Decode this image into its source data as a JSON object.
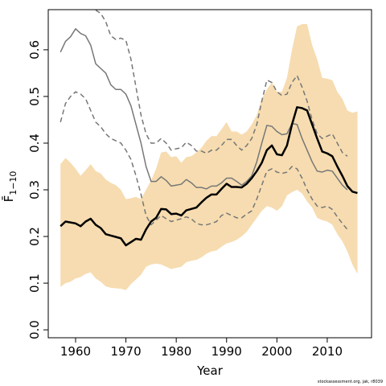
{
  "chart_data": {
    "type": "line",
    "xlabel": "Year",
    "ylabel": "F̄",
    "ylabel_sub": "1−10",
    "note": "stockassessment.org, jak, r8039",
    "xlim": [
      1954.57,
      2018.8
    ],
    "ylim": [
      -0.017,
      0.686
    ],
    "xticks": [
      1960,
      1970,
      1980,
      1990,
      2000,
      2010
    ],
    "yticks": [
      {
        "value": 0,
        "label": "0.0"
      },
      0.1,
      0.2,
      0.3,
      0.4,
      0.5,
      0.6
    ],
    "x": [
      1957,
      1958,
      1959,
      1960,
      1961,
      1962,
      1963,
      1964,
      1965,
      1966,
      1967,
      1968,
      1969,
      1970,
      1971,
      1972,
      1973,
      1974,
      1975,
      1976,
      1977,
      1978,
      1979,
      1980,
      1981,
      1982,
      1983,
      1984,
      1985,
      1986,
      1987,
      1988,
      1989,
      1990,
      1991,
      1992,
      1993,
      1994,
      1995,
      1996,
      1997,
      1998,
      1999,
      2000,
      2001,
      2002,
      2003,
      2004,
      2005,
      2006,
      2007,
      2008,
      2009,
      2010,
      2011,
      2012,
      2013,
      2014,
      2015,
      2016
    ],
    "band": {
      "color": "#f6dcb0",
      "upper": [
        0.355,
        0.368,
        0.358,
        0.345,
        0.33,
        0.342,
        0.355,
        0.34,
        0.335,
        0.322,
        0.315,
        0.31,
        0.3,
        0.28,
        0.282,
        0.285,
        0.28,
        0.3,
        0.32,
        0.345,
        0.38,
        0.382,
        0.37,
        0.372,
        0.358,
        0.37,
        0.372,
        0.38,
        0.39,
        0.405,
        0.415,
        0.415,
        0.43,
        0.445,
        0.425,
        0.425,
        0.418,
        0.425,
        0.44,
        0.46,
        0.495,
        0.515,
        0.53,
        0.51,
        0.51,
        0.54,
        0.6,
        0.65,
        0.655,
        0.655,
        0.61,
        0.58,
        0.54,
        0.538,
        0.535,
        0.51,
        0.495,
        0.47,
        0.465,
        0.468
      ],
      "lower": [
        0.092,
        0.1,
        0.103,
        0.11,
        0.113,
        0.12,
        0.123,
        0.11,
        0.103,
        0.093,
        0.09,
        0.089,
        0.088,
        0.085,
        0.098,
        0.108,
        0.118,
        0.135,
        0.14,
        0.142,
        0.14,
        0.135,
        0.13,
        0.133,
        0.135,
        0.145,
        0.148,
        0.15,
        0.155,
        0.163,
        0.168,
        0.17,
        0.178,
        0.185,
        0.188,
        0.193,
        0.2,
        0.21,
        0.225,
        0.24,
        0.255,
        0.265,
        0.262,
        0.255,
        0.265,
        0.288,
        0.295,
        0.3,
        0.292,
        0.275,
        0.262,
        0.24,
        0.235,
        0.232,
        0.225,
        0.205,
        0.19,
        0.168,
        0.14,
        0.12
      ]
    },
    "series": [
      {
        "color": "#777777",
        "style": "solid",
        "width": 1.5,
        "values": [
          0.595,
          0.618,
          0.628,
          0.645,
          0.635,
          0.63,
          0.61,
          0.57,
          0.56,
          0.55,
          0.525,
          0.515,
          0.515,
          0.505,
          0.48,
          0.44,
          0.4,
          0.35,
          0.318,
          0.318,
          0.328,
          0.32,
          0.308,
          0.31,
          0.312,
          0.322,
          0.315,
          0.305,
          0.305,
          0.302,
          0.308,
          0.308,
          0.315,
          0.325,
          0.325,
          0.318,
          0.31,
          0.318,
          0.33,
          0.36,
          0.4,
          0.438,
          0.436,
          0.425,
          0.418,
          0.42,
          0.442,
          0.44,
          0.41,
          0.385,
          0.36,
          0.34,
          0.338,
          0.342,
          0.34,
          0.325,
          0.31,
          0.3,
          null,
          null
        ]
      },
      {
        "color": "#777777",
        "style": "dashed",
        "width": 1.5,
        "values": [
          null,
          null,
          null,
          null,
          null,
          null,
          null,
          0.685,
          0.678,
          0.66,
          0.63,
          0.622,
          0.625,
          0.62,
          0.58,
          0.52,
          0.46,
          0.42,
          0.4,
          0.4,
          0.41,
          0.4,
          0.385,
          0.388,
          0.39,
          0.402,
          0.395,
          0.383,
          0.383,
          0.378,
          0.385,
          0.385,
          0.395,
          0.408,
          0.408,
          0.395,
          0.385,
          0.395,
          0.41,
          0.44,
          0.49,
          0.535,
          0.53,
          0.51,
          0.502,
          0.505,
          0.53,
          0.545,
          0.52,
          0.49,
          0.45,
          0.42,
          0.41,
          0.415,
          0.42,
          0.4,
          0.38,
          0.372,
          null,
          null
        ]
      },
      {
        "color": "#777777",
        "style": "dashed",
        "width": 1.5,
        "values": [
          0.445,
          0.485,
          0.5,
          0.51,
          0.505,
          0.495,
          0.47,
          0.445,
          0.435,
          0.42,
          0.41,
          0.405,
          0.4,
          0.385,
          0.365,
          0.33,
          0.29,
          0.245,
          0.225,
          0.235,
          0.245,
          0.238,
          0.232,
          0.235,
          0.238,
          0.242,
          0.238,
          0.228,
          0.225,
          0.225,
          0.228,
          0.232,
          0.245,
          0.25,
          0.245,
          0.24,
          0.24,
          0.248,
          0.255,
          0.28,
          0.31,
          0.34,
          0.345,
          0.338,
          0.335,
          0.338,
          0.35,
          0.345,
          0.325,
          0.3,
          0.28,
          0.265,
          0.262,
          0.265,
          0.258,
          0.242,
          0.228,
          0.215,
          null,
          null
        ]
      },
      {
        "color": "#000000",
        "style": "solid",
        "width": 2.5,
        "values": [
          0.222,
          0.232,
          0.23,
          0.228,
          0.222,
          0.232,
          0.238,
          0.225,
          0.218,
          0.205,
          0.202,
          0.199,
          0.196,
          0.181,
          0.188,
          0.195,
          0.193,
          0.215,
          0.232,
          0.24,
          0.259,
          0.258,
          0.248,
          0.249,
          0.245,
          0.256,
          0.259,
          0.262,
          0.273,
          0.283,
          0.29,
          0.29,
          0.302,
          0.313,
          0.306,
          0.306,
          0.305,
          0.313,
          0.325,
          0.34,
          0.358,
          0.385,
          0.395,
          0.376,
          0.374,
          0.395,
          0.44,
          0.477,
          0.475,
          0.47,
          0.44,
          0.41,
          0.382,
          0.378,
          0.372,
          0.35,
          0.33,
          0.308,
          0.296,
          0.293
        ]
      }
    ]
  }
}
